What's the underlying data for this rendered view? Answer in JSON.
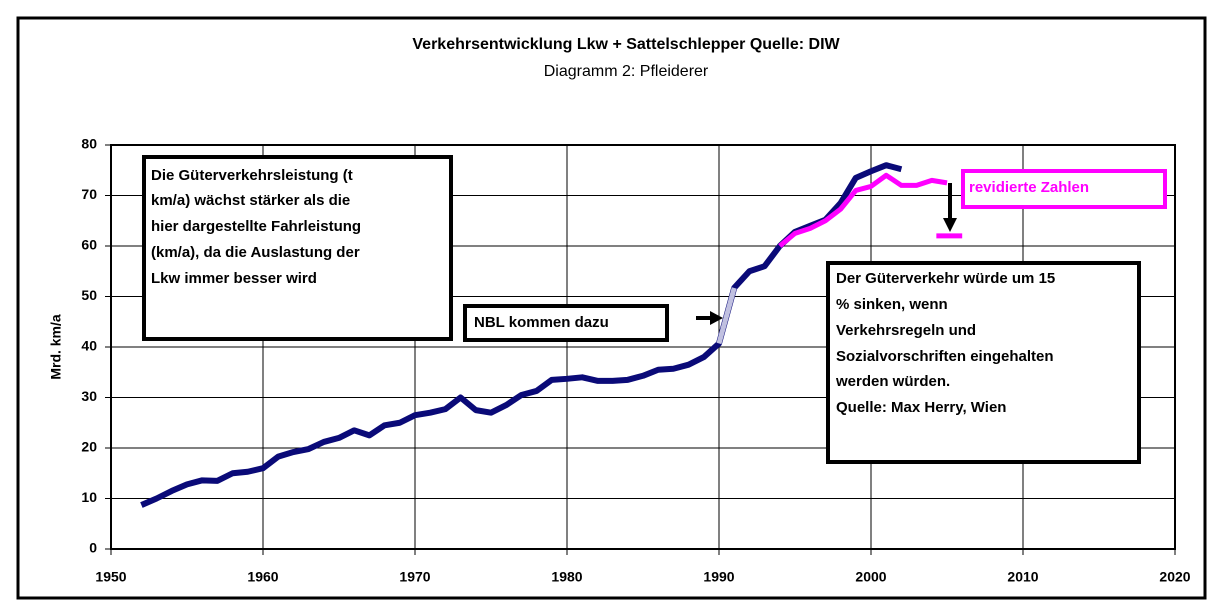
{
  "chart_data": {
    "type": "line",
    "title": "Verkehrsentwicklung Lkw + Sattelschlepper  Quelle: DIW",
    "subtitle": "Diagramm 2: Pfleiderer",
    "ylabel": "Mrd. km/a",
    "xlim": [
      1950,
      2020
    ],
    "xticks": [
      1950,
      1960,
      1970,
      1980,
      1990,
      2000,
      2010,
      2020
    ],
    "ylim": [
      0,
      80
    ],
    "yticks": [
      0,
      10,
      20,
      30,
      40,
      50,
      60,
      70,
      80
    ],
    "grid": true,
    "series": [
      {
        "color": "#0a0a78",
        "x": [
          1952,
          1953,
          1954,
          1955,
          1956,
          1957,
          1958,
          1959,
          1960,
          1961,
          1962,
          1963,
          1964,
          1965,
          1966,
          1967,
          1968,
          1969,
          1970,
          1971,
          1972,
          1973,
          1974,
          1975,
          1976,
          1977,
          1978,
          1979,
          1980,
          1981,
          1982,
          1983,
          1984,
          1985,
          1986,
          1987,
          1988,
          1989,
          1990,
          1991,
          1992,
          1993,
          1994,
          1995,
          1996,
          1997,
          1998,
          1999,
          2000,
          2001,
          2002
        ],
        "values": [
          8.7,
          10,
          11.5,
          12.8,
          13.6,
          13.5,
          15,
          15.3,
          16,
          18.3,
          19.2,
          19.8,
          21.2,
          22,
          23.5,
          22.5,
          24.5,
          25,
          26.5,
          27,
          27.7,
          30,
          27.5,
          27,
          28.5,
          30.5,
          31.3,
          33.5,
          33.7,
          34,
          33.3,
          33.3,
          33.5,
          34.3,
          35.5,
          35.7,
          36.5,
          38,
          40.7,
          51.7,
          55,
          56,
          60,
          62.8,
          64,
          65.2,
          68.5,
          73.5,
          74.8,
          76,
          75.2
        ]
      },
      {
        "color": "#c0c0e0",
        "x": [
          1990,
          1991
        ],
        "values": [
          40.7,
          51.7
        ]
      },
      {
        "color": "#ff00ff",
        "x": [
          1994,
          1995,
          1996,
          1997,
          1998,
          1999,
          2000,
          2001,
          2002,
          2003,
          2004,
          2005
        ],
        "values": [
          60,
          62.5,
          63.5,
          65,
          67.3,
          71,
          71.8,
          74,
          72,
          72,
          73,
          72.5
        ]
      },
      {
        "color": "#ff00ff",
        "x": [
          2004.3,
          2006
        ],
        "values": [
          62,
          62
        ]
      }
    ],
    "annotations": [
      {
        "lines": [
          "Die Güterverkehrsleistung (t",
          "km/a) wächst stärker als die",
          "hier dargestellte Fahrleistung",
          "(km/a), da die Auslastung der",
          "Lkw immer besser wird"
        ]
      },
      {
        "lines": [
          "NBL kommen dazu"
        ]
      },
      {
        "lines": [
          "revidierte Zahlen"
        ]
      },
      {
        "lines": [
          "Der Güterverkehr würde um 15",
          "% sinken, wenn",
          "Verkehrsregeln und",
          "Sozialvorschriften eingehalten",
          "werden würden.",
          "Quelle: Max Herry, Wien"
        ]
      }
    ]
  }
}
